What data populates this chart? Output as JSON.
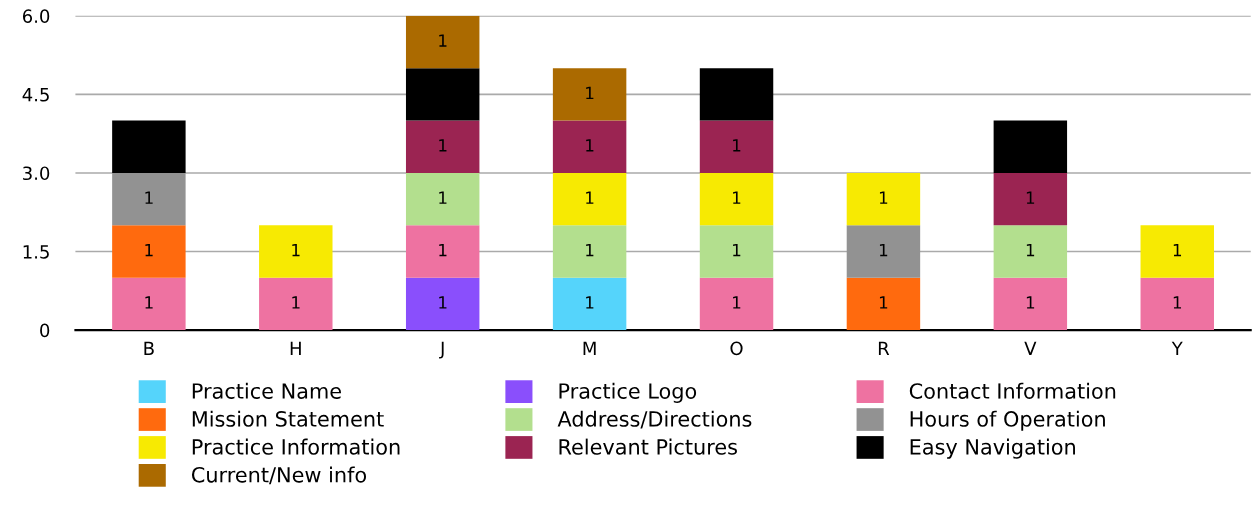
{
  "chart_data": {
    "type": "bar",
    "stacked": true,
    "categories": [
      "B",
      "H",
      "J",
      "M",
      "O",
      "R",
      "V",
      "Y"
    ],
    "series": [
      {
        "name": "Practice Name",
        "color": "#55d4fb",
        "values": [
          null,
          null,
          null,
          1,
          null,
          null,
          null,
          null
        ],
        "value_labels": [
          null,
          null,
          null,
          "1",
          null,
          null,
          null,
          null
        ]
      },
      {
        "name": "Practice Logo",
        "color": "#8a4ffc",
        "values": [
          null,
          null,
          1,
          null,
          null,
          null,
          null,
          null
        ],
        "value_labels": [
          null,
          null,
          "1",
          null,
          null,
          null,
          null,
          null
        ]
      },
      {
        "name": "Contact Information",
        "color": "#ee72a1",
        "values": [
          1,
          1,
          1,
          null,
          1,
          null,
          1,
          1
        ],
        "value_labels": [
          "1",
          "1",
          "1",
          null,
          "1",
          null,
          "1",
          "1"
        ]
      },
      {
        "name": "Mission Statement",
        "color": "#ff6a0e",
        "values": [
          1,
          null,
          null,
          null,
          null,
          1,
          null,
          null
        ],
        "value_labels": [
          "1",
          null,
          null,
          null,
          null,
          "1",
          null,
          null
        ]
      },
      {
        "name": "Address/Directions",
        "color": "#b3df8e",
        "values": [
          null,
          null,
          1,
          1,
          1,
          null,
          1,
          null
        ],
        "value_labels": [
          null,
          null,
          "1",
          "1",
          "1",
          null,
          "1",
          null
        ]
      },
      {
        "name": "Hours of Operation",
        "color": "#929292",
        "values": [
          1,
          null,
          null,
          null,
          null,
          1,
          null,
          null
        ],
        "value_labels": [
          "1",
          null,
          null,
          null,
          null,
          "1",
          null,
          null
        ]
      },
      {
        "name": "Practice Information",
        "color": "#f7ea02",
        "values": [
          null,
          1,
          null,
          1,
          1,
          1,
          null,
          1
        ],
        "value_labels": [
          null,
          "1",
          null,
          "1",
          "1",
          "1",
          null,
          "1"
        ]
      },
      {
        "name": "Relevant Pictures",
        "color": "#9b2452",
        "values": [
          null,
          null,
          1,
          1,
          1,
          null,
          1,
          null
        ],
        "value_labels": [
          null,
          null,
          "1",
          "1",
          "1",
          null,
          "1",
          null
        ]
      },
      {
        "name": "Easy Navigation",
        "color": "#000000",
        "values": [
          1,
          null,
          1,
          null,
          1,
          null,
          1,
          null
        ]
      },
      {
        "name": "Current/New info",
        "color": "#ab6a00",
        "values": [
          null,
          null,
          1,
          1,
          null,
          null,
          null,
          null
        ],
        "value_labels": [
          null,
          null,
          "1",
          "1",
          null,
          null,
          null,
          null
        ]
      }
    ],
    "ylim": [
      0,
      6
    ],
    "yticks": [
      0,
      {
        "value": 1.5,
        "label": "1.5"
      },
      {
        "value": 3,
        "label": "3.0"
      },
      {
        "value": 4.5,
        "label": "4.5"
      },
      {
        "value": 6,
        "label": "6.0"
      }
    ],
    "grid": "y",
    "legend": "bottom"
  }
}
